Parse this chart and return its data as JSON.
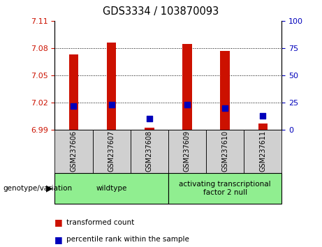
{
  "title": "GDS3334 / 103870093",
  "samples": [
    "GSM237606",
    "GSM237607",
    "GSM237608",
    "GSM237609",
    "GSM237610",
    "GSM237611"
  ],
  "transformed_counts": [
    7.073,
    7.086,
    6.992,
    7.085,
    7.077,
    6.997
  ],
  "percentile_ranks": [
    22,
    23,
    10,
    23,
    20,
    13
  ],
  "ylim_left": [
    6.99,
    7.11
  ],
  "ylim_right": [
    0,
    100
  ],
  "yticks_left": [
    6.99,
    7.02,
    7.05,
    7.08,
    7.11
  ],
  "yticks_right": [
    0,
    25,
    50,
    75,
    100
  ],
  "group_labels": [
    "wildtype",
    "activating transcriptional\nfactor 2 null"
  ],
  "group_ranges": [
    [
      0,
      3
    ],
    [
      3,
      6
    ]
  ],
  "bar_color_red": "#cc1100",
  "dot_color_blue": "#0000bb",
  "bg_color": "#ffffff",
  "plot_bg_color": "#ffffff",
  "sample_box_color": "#d0d0d0",
  "group_box_color": "#90ee90",
  "label_color_left": "#cc1100",
  "label_color_right": "#0000bb",
  "bar_bottom": 6.99,
  "bar_width": 0.25,
  "dot_size": 35,
  "grid_ticks": [
    7.02,
    7.05,
    7.08
  ]
}
